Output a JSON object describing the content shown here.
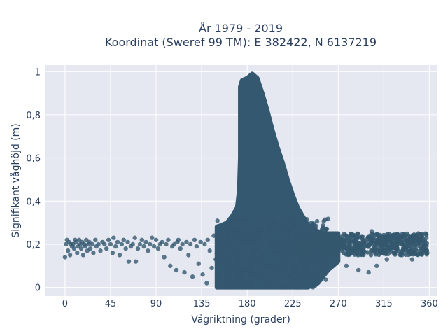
{
  "chart_data": {
    "type": "scatter",
    "title_line1": "År 1979 - 2019",
    "title_line2": "Koordinat (Sweref 99 TM): E 382422, N 6137219",
    "xlabel": "Vågriktning (grader)",
    "ylabel": "Signifikant våghöjd (m)",
    "xlim": [
      -20,
      368
    ],
    "ylim": [
      -0.04,
      1.03
    ],
    "xticks": [
      0,
      45,
      90,
      135,
      180,
      225,
      270,
      315,
      360
    ],
    "yticks": [
      0,
      0.2,
      0.4,
      0.6,
      0.8,
      1
    ],
    "ytick_labels": [
      "0",
      "0,2",
      "0,4",
      "0,6",
      "0,8",
      "1"
    ],
    "grid": true,
    "legend": "none",
    "colors": {
      "marker": "#34586f",
      "plot_bg": "#e5e8f1",
      "grid": "#ffffff",
      "text": "#2a3f5f"
    },
    "density_outline": {
      "upper": [
        [
          150,
          0.28
        ],
        [
          160,
          0.3
        ],
        [
          165,
          0.33
        ],
        [
          170,
          0.37
        ],
        [
          172,
          0.45
        ],
        [
          173,
          0.6
        ],
        [
          173,
          0.8
        ],
        [
          173,
          0.93
        ],
        [
          175,
          0.96
        ],
        [
          180,
          0.97
        ],
        [
          185,
          0.99
        ],
        [
          190,
          0.97
        ],
        [
          195,
          0.9
        ],
        [
          200,
          0.82
        ],
        [
          205,
          0.73
        ],
        [
          210,
          0.65
        ],
        [
          215,
          0.58
        ],
        [
          220,
          0.5
        ],
        [
          225,
          0.43
        ],
        [
          230,
          0.37
        ],
        [
          235,
          0.33
        ],
        [
          240,
          0.29
        ],
        [
          250,
          0.26
        ],
        [
          260,
          0.25
        ],
        [
          270,
          0.25
        ]
      ],
      "lower": [
        [
          150,
          0.0
        ],
        [
          160,
          0.0
        ],
        [
          200,
          0.0
        ],
        [
          240,
          0.0
        ],
        [
          250,
          0.02
        ],
        [
          260,
          0.08
        ],
        [
          270,
          0.12
        ]
      ]
    },
    "band": {
      "x": [
        230,
        358
      ],
      "y_center": 0.2,
      "y_spread": 0.05
    },
    "sparse_points": [
      [
        0,
        0.14
      ],
      [
        1,
        0.2
      ],
      [
        2,
        0.22
      ],
      [
        3,
        0.17
      ],
      [
        4,
        0.21
      ],
      [
        5,
        0.15
      ],
      [
        6,
        0.2
      ],
      [
        7,
        0.19
      ],
      [
        8,
        0.2
      ],
      [
        9,
        0.18
      ],
      [
        10,
        0.22
      ],
      [
        11,
        0.21
      ],
      [
        12,
        0.16
      ],
      [
        13,
        0.19
      ],
      [
        14,
        0.22
      ],
      [
        15,
        0.2
      ],
      [
        16,
        0.18
      ],
      [
        17,
        0.21
      ],
      [
        18,
        0.15
      ],
      [
        19,
        0.2
      ],
      [
        20,
        0.19
      ],
      [
        21,
        0.22
      ],
      [
        22,
        0.17
      ],
      [
        23,
        0.2
      ],
      [
        24,
        0.21
      ],
      [
        25,
        0.18
      ],
      [
        27,
        0.2
      ],
      [
        28,
        0.16
      ],
      [
        30,
        0.22
      ],
      [
        31,
        0.19
      ],
      [
        33,
        0.2
      ],
      [
        35,
        0.17
      ],
      [
        37,
        0.21
      ],
      [
        39,
        0.2
      ],
      [
        41,
        0.18
      ],
      [
        43,
        0.22
      ],
      [
        45,
        0.2
      ],
      [
        47,
        0.16
      ],
      [
        48,
        0.23
      ],
      [
        50,
        0.19
      ],
      [
        52,
        0.21
      ],
      [
        54,
        0.15
      ],
      [
        56,
        0.2
      ],
      [
        58,
        0.22
      ],
      [
        60,
        0.18
      ],
      [
        62,
        0.21
      ],
      [
        63,
        0.12
      ],
      [
        65,
        0.19
      ],
      [
        67,
        0.2
      ],
      [
        69,
        0.23
      ],
      [
        70,
        0.12
      ],
      [
        72,
        0.18
      ],
      [
        74,
        0.2
      ],
      [
        76,
        0.22
      ],
      [
        78,
        0.19
      ],
      [
        80,
        0.21
      ],
      [
        82,
        0.17
      ],
      [
        84,
        0.2
      ],
      [
        86,
        0.23
      ],
      [
        88,
        0.19
      ],
      [
        90,
        0.22
      ],
      [
        92,
        0.18
      ],
      [
        94,
        0.2
      ],
      [
        96,
        0.21
      ],
      [
        98,
        0.14
      ],
      [
        100,
        0.2
      ],
      [
        102,
        0.22
      ],
      [
        104,
        0.1
      ],
      [
        106,
        0.19
      ],
      [
        108,
        0.2
      ],
      [
        110,
        0.08
      ],
      [
        111,
        0.21
      ],
      [
        112,
        0.22
      ],
      [
        114,
        0.18
      ],
      [
        116,
        0.2
      ],
      [
        118,
        0.07
      ],
      [
        120,
        0.21
      ],
      [
        122,
        0.15
      ],
      [
        124,
        0.2
      ],
      [
        126,
        0.05
      ],
      [
        128,
        0.22
      ],
      [
        130,
        0.19
      ],
      [
        132,
        0.11
      ],
      [
        134,
        0.21
      ],
      [
        136,
        0.06
      ],
      [
        138,
        0.2
      ],
      [
        140,
        0.02
      ],
      [
        141,
        0.22
      ],
      [
        143,
        0.17
      ],
      [
        145,
        0.09
      ],
      [
        147,
        0.24
      ],
      [
        149,
        0.13
      ],
      [
        333,
        0.15
      ],
      [
        338,
        0.22
      ],
      [
        343,
        0.13
      ],
      [
        348,
        0.21
      ],
      [
        352,
        0.18
      ],
      [
        355,
        0.2
      ],
      [
        357,
        0.23
      ],
      [
        358,
        0.16
      ],
      [
        325,
        0.24
      ],
      [
        318,
        0.13
      ],
      [
        308,
        0.1
      ],
      [
        303,
        0.26
      ],
      [
        290,
        0.08
      ],
      [
        285,
        0.24
      ],
      [
        278,
        0.1
      ],
      [
        300,
        0.07
      ]
    ]
  }
}
